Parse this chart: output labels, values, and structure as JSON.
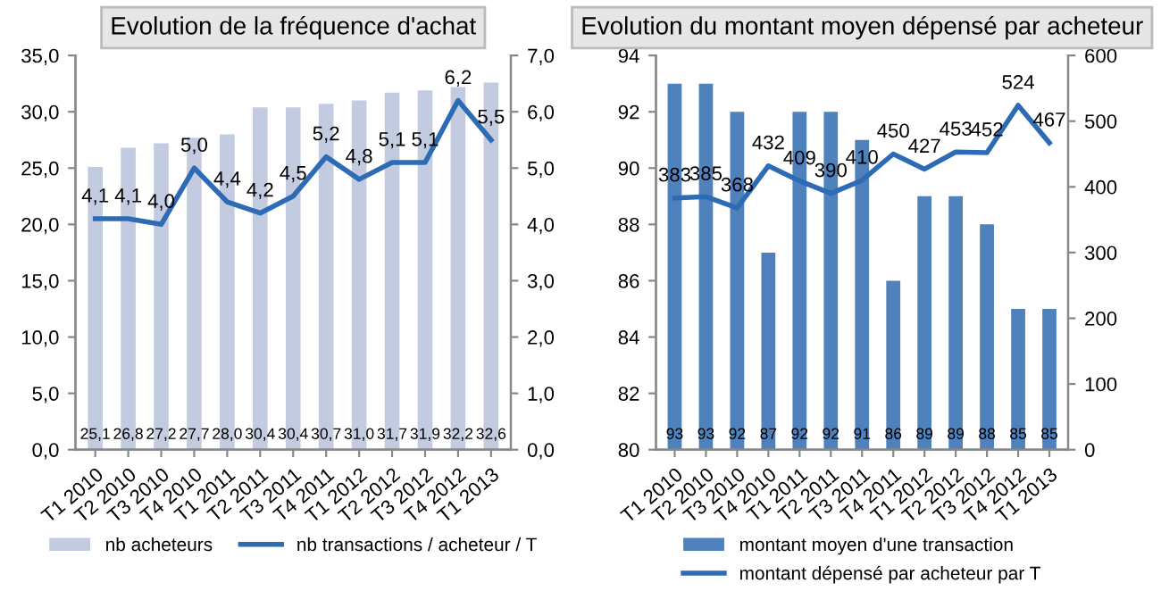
{
  "chart_data": [
    {
      "type": "bar",
      "title": "Evolution de la fréquence d'achat",
      "categories": [
        "T1 2010",
        "T2 2010",
        "T3 2010",
        "T4 2010",
        "T1 2011",
        "T2 2011",
        "T3 2011",
        "T4 2011",
        "T1 2012",
        "T2 2012",
        "T3 2012",
        "T4 2012",
        "T1 2013"
      ],
      "series": [
        {
          "name": "nb acheteurs",
          "color": "#c3cbe0",
          "values": [
            25.1,
            26.8,
            27.2,
            27.7,
            28.0,
            30.4,
            30.4,
            30.7,
            31.0,
            31.7,
            31.9,
            32.2,
            32.6
          ],
          "value_labels": [
            "25,1",
            "26,8",
            "27,2",
            "27,7",
            "28,0",
            "30,4",
            "30,4",
            "30,7",
            "31,0",
            "31,7",
            "31,9",
            "32,2",
            "32,6"
          ]
        },
        {
          "name": "nb transactions / acheteur / T",
          "type": "line",
          "axis": "y2",
          "color": "#2e6bb5",
          "values": [
            4.1,
            4.1,
            4.0,
            5.0,
            4.4,
            4.2,
            4.5,
            5.2,
            4.8,
            5.1,
            5.1,
            6.2,
            5.5
          ],
          "value_labels": [
            "4,1",
            "4,1",
            "4,0",
            "5,0",
            "4,4",
            "4,2",
            "4,5",
            "5,2",
            "4,8",
            "5,1",
            "5,1",
            "6,2",
            "5,5"
          ]
        }
      ],
      "ylim": [
        0,
        35
      ],
      "yticks": [
        {
          "value": 0,
          "label": "0,0"
        },
        {
          "value": 5,
          "label": "5,0"
        },
        {
          "value": 10,
          "label": "10,0"
        },
        {
          "value": 15,
          "label": "15,0"
        },
        {
          "value": 20,
          "label": "20,0"
        },
        {
          "value": 25,
          "label": "25,0"
        },
        {
          "value": 30,
          "label": "30,0"
        },
        {
          "value": 35,
          "label": "35,0"
        }
      ],
      "y2lim": [
        0,
        7
      ],
      "y2ticks": [
        {
          "value": 0,
          "label": "0,0"
        },
        {
          "value": 1,
          "label": "1,0"
        },
        {
          "value": 2,
          "label": "2,0"
        },
        {
          "value": 3,
          "label": "3,0"
        },
        {
          "value": 4,
          "label": "4,0"
        },
        {
          "value": 5,
          "label": "5,0"
        },
        {
          "value": 6,
          "label": "6,0"
        },
        {
          "value": 7,
          "label": "7,0"
        }
      ],
      "legend": "bottom",
      "grid": false,
      "marker": "none"
    },
    {
      "type": "bar",
      "title": "Evolution du montant moyen dépensé par acheteur",
      "categories": [
        "T1 2010",
        "T2 2010",
        "T3 2010",
        "T4 2010",
        "T1 2011",
        "T2 2011",
        "T3 2011",
        "T4 2011",
        "T1 2012",
        "T2 2012",
        "T3 2012",
        "T4 2012",
        "T1 2013"
      ],
      "series": [
        {
          "name": "montant moyen d'une transaction",
          "color": "#4f81bd",
          "values": [
            93,
            93,
            92,
            87,
            92,
            92,
            91,
            86,
            89,
            89,
            88,
            85,
            85
          ]
        },
        {
          "name": "montant dépensé par acheteur par T",
          "type": "line",
          "axis": "y2",
          "color": "#2e6bb5",
          "values": [
            383,
            385,
            368,
            432,
            409,
            390,
            410,
            450,
            427,
            453,
            452,
            524,
            467
          ]
        }
      ],
      "data_labels": true,
      "ylim": [
        80,
        94
      ],
      "yticks": [
        80,
        82,
        84,
        86,
        88,
        90,
        92,
        94
      ],
      "y2lim": [
        0,
        600
      ],
      "y2ticks": [
        0,
        100,
        200,
        300,
        400,
        500,
        600
      ],
      "legend": "bottom",
      "grid": false,
      "marker": "none"
    }
  ]
}
